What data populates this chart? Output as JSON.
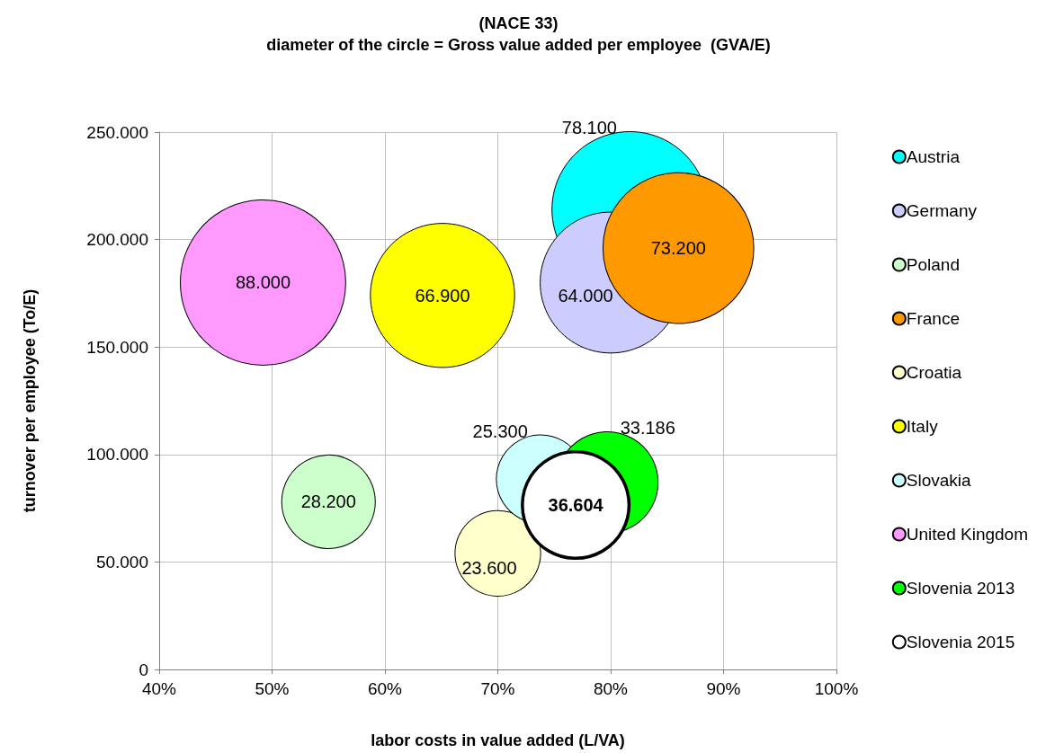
{
  "chart_data": {
    "type": "bubble",
    "title": "(NACE 33)",
    "subtitle": "diameter of the circle = Gross value added per employee  (GVA/E)",
    "xlabel": "labor costs in value added (L/VA)",
    "ylabel": "turnover per employee (To/E)",
    "xlim": [
      40,
      100
    ],
    "xticks": [
      {
        "value": 40,
        "label": "40%"
      },
      {
        "value": 50,
        "label": "50%"
      },
      {
        "value": 60,
        "label": "60%"
      },
      {
        "value": 70,
        "label": "70%"
      },
      {
        "value": 80,
        "label": "80%"
      },
      {
        "value": 90,
        "label": "90%"
      },
      {
        "value": 100,
        "label": "100%"
      }
    ],
    "ylim": [
      0,
      250000
    ],
    "yticks": [
      {
        "value": 0,
        "label": "0"
      },
      {
        "value": 50000,
        "label": "50.000"
      },
      {
        "value": 100000,
        "label": "100.000"
      },
      {
        "value": 150000,
        "label": "150.000"
      },
      {
        "value": 200000,
        "label": "200.000"
      },
      {
        "value": 250000,
        "label": "250.000"
      }
    ],
    "grid": true,
    "legend": "right",
    "series": [
      {
        "name": "Austria",
        "color": "#00ffff",
        "x": [
          81.7
        ],
        "values": [
          214000
        ],
        "sizes": [
          78100
        ],
        "value_labels": [
          "78.100"
        ]
      },
      {
        "name": "Germany",
        "color": "#ccccff",
        "x": [
          80.0
        ],
        "values": [
          180000
        ],
        "sizes": [
          64000
        ],
        "value_labels": [
          "64.000"
        ]
      },
      {
        "name": "Poland",
        "color": "#ccffcc",
        "x": [
          55.0
        ],
        "values": [
          78000
        ],
        "sizes": [
          28200
        ],
        "value_labels": [
          "28.200"
        ]
      },
      {
        "name": "France",
        "color": "#ff9900",
        "x": [
          86.0
        ],
        "values": [
          196000
        ],
        "sizes": [
          73200
        ],
        "value_labels": [
          "73.200"
        ]
      },
      {
        "name": "Croatia",
        "color": "#ffffcc",
        "x": [
          70.0
        ],
        "values": [
          54000
        ],
        "sizes": [
          23600
        ],
        "value_labels": [
          "23.600"
        ]
      },
      {
        "name": "Italy",
        "color": "#ffff00",
        "x": [
          65.1
        ],
        "values": [
          174000
        ],
        "sizes": [
          66900
        ],
        "value_labels": [
          "66.900"
        ]
      },
      {
        "name": "Slovakia",
        "color": "#ccffff",
        "x": [
          73.8
        ],
        "values": [
          88500
        ],
        "sizes": [
          25300
        ],
        "value_labels": [
          "25.300"
        ]
      },
      {
        "name": "United Kingdom",
        "color": "#ff99ff",
        "x": [
          49.2
        ],
        "values": [
          180000
        ],
        "sizes": [
          88000
        ],
        "value_labels": [
          "88.000"
        ]
      },
      {
        "name": "Slovenia 2013",
        "color": "#00ff00",
        "x": [
          79.7
        ],
        "values": [
          87000
        ],
        "sizes": [
          33186
        ],
        "value_labels": [
          "33.186"
        ]
      },
      {
        "name": "Slovenia 2015",
        "color": "#ffffff",
        "x": [
          76.9
        ],
        "values": [
          76500
        ],
        "sizes": [
          36604
        ],
        "value_labels": [
          "36.604"
        ]
      }
    ]
  }
}
